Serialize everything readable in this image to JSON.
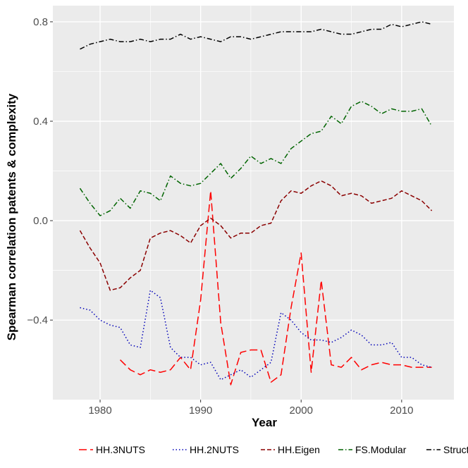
{
  "chart_data": {
    "type": "line",
    "xlabel": "Year",
    "ylabel": "Spearman correlation patents & complexity",
    "xlim": [
      1975.3,
      2015.2
    ],
    "ylim": [
      -0.72,
      0.865
    ],
    "x_ticks": [
      1980,
      1990,
      2000,
      2010
    ],
    "y_ticks": [
      -0.4,
      0.0,
      0.4,
      0.8
    ],
    "x_tick_labels": [
      "1980",
      "1990",
      "2000",
      "2010"
    ],
    "y_tick_labels": [
      "−0.4",
      "0.0",
      "0.4",
      "0.8"
    ],
    "grid": true,
    "legend_position": "bottom",
    "series": [
      {
        "name": "HH.3NUTS",
        "color": "#ff0000",
        "dash": "long-dash",
        "x": [
          1982,
          1983,
          1984,
          1985,
          1986,
          1987,
          1988,
          1989,
          1990,
          1991,
          1992,
          1993,
          1994,
          1995,
          1996,
          1997,
          1998,
          1999,
          2000,
          2001,
          2002,
          2003,
          2004,
          2005,
          2006,
          2007,
          2008,
          2009,
          2010,
          2011,
          2012,
          2013
        ],
        "y": [
          -0.56,
          -0.6,
          -0.62,
          -0.6,
          -0.61,
          -0.6,
          -0.55,
          -0.6,
          -0.32,
          0.12,
          -0.41,
          -0.66,
          -0.53,
          -0.52,
          -0.52,
          -0.65,
          -0.62,
          -0.35,
          -0.13,
          -0.61,
          -0.24,
          -0.58,
          -0.59,
          -0.55,
          -0.6,
          -0.58,
          -0.57,
          -0.58,
          -0.58,
          -0.59,
          -0.59,
          -0.59
        ]
      },
      {
        "name": "HH.2NUTS",
        "color": "#0000b8",
        "dash": "dotted",
        "x": [
          1978,
          1979,
          1980,
          1981,
          1982,
          1983,
          1984,
          1985,
          1986,
          1987,
          1988,
          1989,
          1990,
          1991,
          1992,
          1993,
          1994,
          1995,
          1996,
          1997,
          1998,
          1999,
          2000,
          2001,
          2002,
          2003,
          2004,
          2005,
          2006,
          2007,
          2008,
          2009,
          2010,
          2011,
          2012,
          2013
        ],
        "y": [
          -0.35,
          -0.36,
          -0.4,
          -0.42,
          -0.43,
          -0.5,
          -0.51,
          -0.28,
          -0.31,
          -0.51,
          -0.55,
          -0.55,
          -0.58,
          -0.57,
          -0.64,
          -0.62,
          -0.6,
          -0.63,
          -0.6,
          -0.57,
          -0.37,
          -0.4,
          -0.45,
          -0.48,
          -0.48,
          -0.49,
          -0.47,
          -0.44,
          -0.46,
          -0.5,
          -0.5,
          -0.49,
          -0.55,
          -0.55,
          -0.58,
          -0.59
        ]
      },
      {
        "name": "HH.Eigen",
        "color": "#8b0000",
        "dash": "dashed",
        "x": [
          1978,
          1979,
          1980,
          1981,
          1982,
          1983,
          1984,
          1985,
          1986,
          1987,
          1988,
          1989,
          1990,
          1991,
          1992,
          1993,
          1994,
          1995,
          1996,
          1997,
          1998,
          1999,
          2000,
          2001,
          2002,
          2003,
          2004,
          2005,
          2006,
          2007,
          2008,
          2009,
          2010,
          2011,
          2012,
          2013
        ],
        "y": [
          -0.04,
          -0.11,
          -0.17,
          -0.28,
          -0.27,
          -0.23,
          -0.2,
          -0.07,
          -0.05,
          -0.04,
          -0.06,
          -0.09,
          -0.02,
          0.01,
          -0.02,
          -0.07,
          -0.05,
          -0.05,
          -0.02,
          -0.01,
          0.08,
          0.12,
          0.11,
          0.14,
          0.16,
          0.14,
          0.1,
          0.11,
          0.1,
          0.07,
          0.08,
          0.09,
          0.12,
          0.1,
          0.08,
          0.04
        ]
      },
      {
        "name": "FS.Modular",
        "color": "#006400",
        "dash": "dashdot",
        "x": [
          1978,
          1979,
          1980,
          1981,
          1982,
          1983,
          1984,
          1985,
          1986,
          1987,
          1988,
          1989,
          1990,
          1991,
          1992,
          1993,
          1994,
          1995,
          1996,
          1997,
          1998,
          1999,
          2000,
          2001,
          2002,
          2003,
          2004,
          2005,
          2006,
          2007,
          2008,
          2009,
          2010,
          2011,
          2012,
          2013
        ],
        "y": [
          0.13,
          0.07,
          0.02,
          0.04,
          0.09,
          0.05,
          0.12,
          0.11,
          0.08,
          0.18,
          0.15,
          0.14,
          0.15,
          0.19,
          0.23,
          0.17,
          0.21,
          0.26,
          0.23,
          0.25,
          0.23,
          0.29,
          0.32,
          0.35,
          0.36,
          0.42,
          0.39,
          0.46,
          0.48,
          0.46,
          0.43,
          0.45,
          0.44,
          0.44,
          0.45,
          0.38
        ]
      },
      {
        "name": "Structural",
        "color": "#000000",
        "dash": "dashdot",
        "x": [
          1978,
          1979,
          1980,
          1981,
          1982,
          1983,
          1984,
          1985,
          1986,
          1987,
          1988,
          1989,
          1990,
          1991,
          1992,
          1993,
          1994,
          1995,
          1996,
          1997,
          1998,
          1999,
          2000,
          2001,
          2002,
          2003,
          2004,
          2005,
          2006,
          2007,
          2008,
          2009,
          2010,
          2011,
          2012,
          2013
        ],
        "y": [
          0.69,
          0.71,
          0.72,
          0.73,
          0.72,
          0.72,
          0.73,
          0.72,
          0.73,
          0.73,
          0.75,
          0.73,
          0.74,
          0.73,
          0.72,
          0.74,
          0.74,
          0.73,
          0.74,
          0.75,
          0.76,
          0.76,
          0.76,
          0.76,
          0.77,
          0.76,
          0.75,
          0.75,
          0.76,
          0.77,
          0.77,
          0.79,
          0.78,
          0.79,
          0.8,
          0.79
        ]
      }
    ]
  }
}
